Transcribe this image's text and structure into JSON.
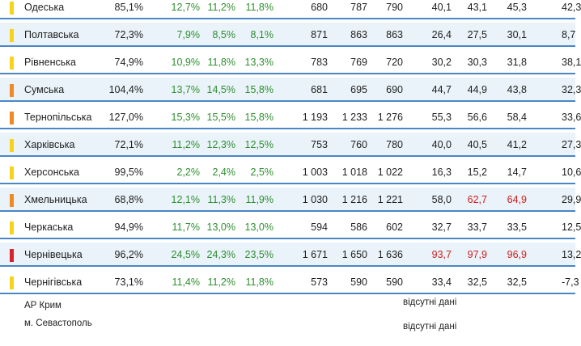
{
  "colors": {
    "yellow": "#f7d419",
    "orange": "#f08a24",
    "red": "#d8232a",
    "green_text": "#2f8f2f",
    "red_text": "#d21c1c",
    "row_border": "#4a86c5",
    "row_alt_bg": "#e9f3f9"
  },
  "rows": [
    {
      "name": "Одеська",
      "indicator": "yellow",
      "c1": "85,1%",
      "c2": "12,7%",
      "c3": "11,2%",
      "c4": "11,8%",
      "c5": "680",
      "c6": "787",
      "c7": "790",
      "c8": "40,1",
      "c9": "43,1",
      "c10": "45,3",
      "c11": "42,3"
    },
    {
      "name": "Полтавська",
      "indicator": "yellow",
      "c1": "72,3%",
      "c2": "7,9%",
      "c3": "8,5%",
      "c4": "8,1%",
      "c5": "871",
      "c6": "863",
      "c7": "863",
      "c8": "26,4",
      "c9": "27,5",
      "c10": "30,1",
      "c11": "8,7"
    },
    {
      "name": "Рівненська",
      "indicator": "yellow",
      "c1": "74,9%",
      "c2": "10,9%",
      "c3": "11,8%",
      "c4": "13,3%",
      "c5": "783",
      "c6": "769",
      "c7": "720",
      "c8": "30,2",
      "c9": "30,3",
      "c10": "31,8",
      "c11": "38,1"
    },
    {
      "name": "Сумська",
      "indicator": "orange",
      "c1": "104,4%",
      "c2": "13,7%",
      "c3": "14,5%",
      "c4": "15,8%",
      "c5": "681",
      "c6": "695",
      "c7": "690",
      "c8": "44,7",
      "c9": "44,9",
      "c10": "43,8",
      "c11": "32,3"
    },
    {
      "name": "Тернопільська",
      "indicator": "orange",
      "c1": "127,0%",
      "c2": "15,3%",
      "c3": "15,5%",
      "c4": "15,8%",
      "c5": "1 193",
      "c6": "1 233",
      "c7": "1 276",
      "c8": "55,3",
      "c9": "56,6",
      "c10": "58,4",
      "c11": "33,6"
    },
    {
      "name": "Харківська",
      "indicator": "yellow",
      "c1": "72,1%",
      "c2": "11,2%",
      "c3": "12,3%",
      "c4": "12,5%",
      "c5": "753",
      "c6": "760",
      "c7": "780",
      "c8": "40,0",
      "c9": "40,5",
      "c10": "41,2",
      "c11": "27,3"
    },
    {
      "name": "Херсонська",
      "indicator": "yellow",
      "c1": "99,5%",
      "c2": "2,2%",
      "c3": "2,4%",
      "c4": "2,5%",
      "c5": "1 003",
      "c6": "1 018",
      "c7": "1 022",
      "c8": "16,3",
      "c9": "15,2",
      "c10": "14,7",
      "c11": "10,6"
    },
    {
      "name": "Хмельницька",
      "indicator": "orange",
      "c1": "68,8%",
      "c2": "12,1%",
      "c3": "11,3%",
      "c4": "11,9%",
      "c5": "1 030",
      "c6": "1 216",
      "c7": "1 221",
      "c8": "58,0",
      "c9": "62,7",
      "c10": "64,9",
      "c11": "29,9",
      "red_cols": [
        "c9",
        "c10"
      ]
    },
    {
      "name": "Черкаська",
      "indicator": "yellow",
      "c1": "94,9%",
      "c2": "11,7%",
      "c3": "13,0%",
      "c4": "13,0%",
      "c5": "594",
      "c6": "586",
      "c7": "602",
      "c8": "32,7",
      "c9": "33,7",
      "c10": "33,5",
      "c11": "12,5"
    },
    {
      "name": "Чернівецька",
      "indicator": "red",
      "c1": "96,2%",
      "c2": "24,5%",
      "c3": "24,3%",
      "c4": "23,5%",
      "c5": "1 671",
      "c6": "1 650",
      "c7": "1 636",
      "c8": "93,7",
      "c9": "97,9",
      "c10": "96,9",
      "c11": "13,2",
      "red_cols": [
        "c8",
        "c9",
        "c10"
      ]
    },
    {
      "name": "Чернігівська",
      "indicator": "yellow",
      "c1": "73,1%",
      "c2": "11,4%",
      "c3": "11,2%",
      "c4": "11,8%",
      "c5": "573",
      "c6": "590",
      "c7": "590",
      "c8": "33,4",
      "c9": "32,5",
      "c10": "32,5",
      "c11": "-7,3"
    }
  ],
  "footer": {
    "crimea": "АР Крим",
    "sevastopol": "м. Севастополь",
    "note": "відсутні дані"
  }
}
